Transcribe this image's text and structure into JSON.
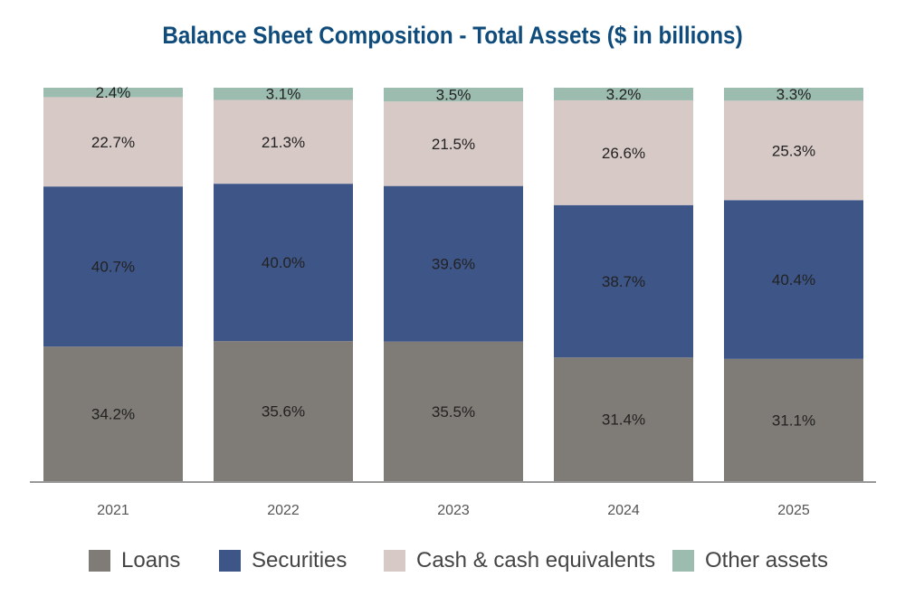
{
  "colors": {
    "loans": "#7f7b76",
    "securities": "#3d5587",
    "cash": "#d7c9c6",
    "other": "#9bbcaf",
    "title": "#0f4c7c",
    "axis": "#999999"
  },
  "chart_data": {
    "type": "bar",
    "stacked": true,
    "title": "Balance Sheet Composition - Total Assets ($ in billions)",
    "xlabel": "",
    "ylabel": "",
    "ylim": [
      0,
      100
    ],
    "grid": false,
    "legend_position": "bottom",
    "categories": [
      "2021",
      "2022",
      "2023",
      "2024",
      "2025"
    ],
    "series": [
      {
        "name": "Loans",
        "values": [
          34.2,
          35.6,
          35.5,
          31.4,
          31.1
        ],
        "labels": [
          "34.2%",
          "35.6%",
          "35.5%",
          "31.4%",
          "31.1%"
        ]
      },
      {
        "name": "Securities",
        "values": [
          40.7,
          40.0,
          39.6,
          38.7,
          40.4
        ],
        "labels": [
          "40.7%",
          "40.0%",
          "39.6%",
          "38.7%",
          "40.4%"
        ]
      },
      {
        "name": "Cash & cash equivalents",
        "values": [
          22.7,
          21.3,
          21.5,
          26.6,
          25.3
        ],
        "labels": [
          "22.7%",
          "21.3%",
          "21.5%",
          "26.6%",
          "25.3%"
        ]
      },
      {
        "name": "Other assets",
        "values": [
          2.4,
          3.1,
          3.5,
          3.2,
          3.3
        ],
        "labels": [
          "2.4%",
          "3.1%",
          "3.5%",
          "3.2%",
          "3.3%"
        ]
      }
    ]
  }
}
